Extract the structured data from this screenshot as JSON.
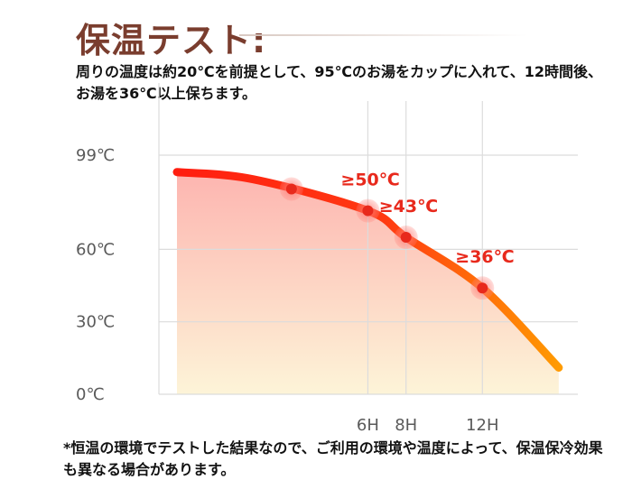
{
  "title": "保温テスト:",
  "description": "周りの温度は約20℃を前提として、95℃のお湯をカップに入れて、12時間後、お湯を36℃以上保ちます。",
  "footnote": "*恒温の環境でテストした結果なので、ご利用の環境や温度によって、保温保冷効果も異なる場合があります。",
  "colors": {
    "title": "#7a3d2e",
    "curve_start": "#ff1a10",
    "curve_end": "#ffa500",
    "marker": "#e8291c",
    "callout": "#e8291c",
    "grid": "#dcdcdc"
  },
  "chart_data": {
    "type": "line",
    "xlabel": "",
    "ylabel": "",
    "x_ticks": [
      "6H",
      "8H",
      "12H"
    ],
    "y_ticks": [
      "99℃",
      "60℃",
      "30℃",
      "0℃"
    ],
    "ylim": [
      0,
      99
    ],
    "xlim": [
      -4,
      17
    ],
    "grid": true,
    "series": [
      {
        "x": [
          -4,
          0,
          6,
          8,
          12,
          16
        ],
        "y": [
          92,
          89,
          76,
          65,
          44,
          11
        ]
      }
    ],
    "markers": [
      {
        "x": 2,
        "y": 85
      },
      {
        "x": 6,
        "y": 76
      },
      {
        "x": 8,
        "y": 65
      },
      {
        "x": 12,
        "y": 44
      }
    ],
    "callouts": [
      {
        "label": "≥50℃",
        "x": 6
      },
      {
        "label": "≥43℃",
        "x": 8
      },
      {
        "label": "≥36℃",
        "x": 12
      }
    ]
  }
}
